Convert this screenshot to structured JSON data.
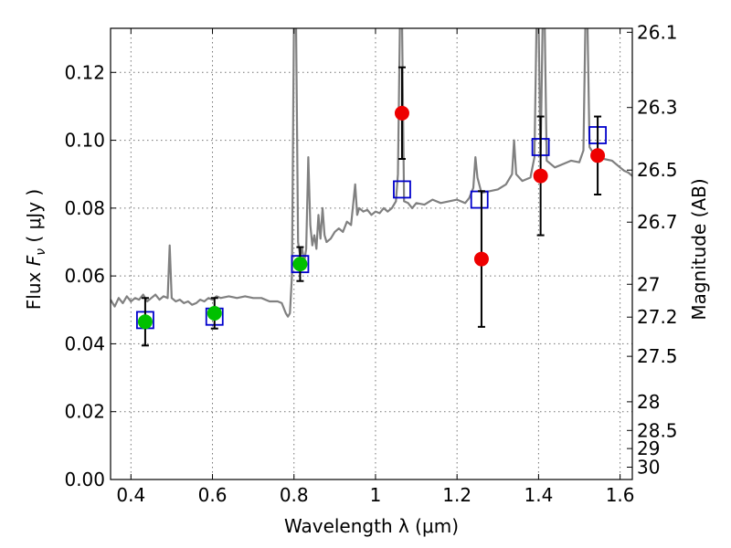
{
  "chart_data": {
    "type": "scatter",
    "xlabel": "Wavelength  λ (μm)",
    "ylabel": "Flux  F_ν  ( μJy )",
    "ylabel_parts": {
      "pre": "Flux  ",
      "sym": "F",
      "sub": "ν",
      "post": "  ( μJy )"
    },
    "ylabel_right": "Magnitude (AB)",
    "xlim": [
      0.35,
      1.63
    ],
    "ylim": [
      0.0,
      0.133
    ],
    "grid": true,
    "x_ticks": [
      0.4,
      0.6,
      0.8,
      1.0,
      1.2,
      1.4,
      1.6
    ],
    "x_tick_labels": [
      "0.4",
      "0.6",
      "0.8",
      "1",
      "1.2",
      "1.4",
      "1.6"
    ],
    "y_ticks": [
      0.0,
      0.02,
      0.04,
      0.06,
      0.08,
      0.1,
      0.12
    ],
    "y_tick_labels": [
      "0.00",
      "0.02",
      "0.04",
      "0.06",
      "0.08",
      "0.10",
      "0.12"
    ],
    "mag_ticks": [
      26.1,
      26.3,
      26.5,
      26.7,
      27,
      27.2,
      27.5,
      28,
      28.5,
      29,
      30
    ],
    "mag_tick_labels": [
      "26.1",
      "26.3",
      "26.5",
      "26.7",
      "27",
      "27.2",
      "27.5",
      "28",
      "28.5",
      "29",
      "30"
    ],
    "series": [
      {
        "kind": "spectrum",
        "color": "#808080",
        "points": [
          [
            0.35,
            0.053
          ],
          [
            0.36,
            0.051
          ],
          [
            0.37,
            0.0535
          ],
          [
            0.38,
            0.052
          ],
          [
            0.39,
            0.054
          ],
          [
            0.4,
            0.0525
          ],
          [
            0.41,
            0.0535
          ],
          [
            0.42,
            0.053
          ],
          [
            0.43,
            0.0545
          ],
          [
            0.44,
            0.0525
          ],
          [
            0.45,
            0.0535
          ],
          [
            0.46,
            0.0545
          ],
          [
            0.47,
            0.053
          ],
          [
            0.48,
            0.054
          ],
          [
            0.49,
            0.0535
          ],
          [
            0.495,
            0.069
          ],
          [
            0.5,
            0.0535
          ],
          [
            0.51,
            0.0525
          ],
          [
            0.52,
            0.053
          ],
          [
            0.53,
            0.052
          ],
          [
            0.54,
            0.0525
          ],
          [
            0.55,
            0.0515
          ],
          [
            0.56,
            0.052
          ],
          [
            0.57,
            0.053
          ],
          [
            0.58,
            0.0525
          ],
          [
            0.59,
            0.0535
          ],
          [
            0.6,
            0.053
          ],
          [
            0.61,
            0.054
          ],
          [
            0.62,
            0.0535
          ],
          [
            0.64,
            0.054
          ],
          [
            0.66,
            0.0535
          ],
          [
            0.68,
            0.054
          ],
          [
            0.7,
            0.0535
          ],
          [
            0.72,
            0.0535
          ],
          [
            0.74,
            0.0525
          ],
          [
            0.76,
            0.0525
          ],
          [
            0.77,
            0.052
          ],
          [
            0.78,
            0.049
          ],
          [
            0.785,
            0.048
          ],
          [
            0.79,
            0.049
          ],
          [
            0.795,
            0.06
          ],
          [
            0.8,
            0.135
          ],
          [
            0.805,
            0.135
          ],
          [
            0.81,
            0.07
          ],
          [
            0.815,
            0.066
          ],
          [
            0.82,
            0.068
          ],
          [
            0.825,
            0.064
          ],
          [
            0.83,
            0.068
          ],
          [
            0.835,
            0.095
          ],
          [
            0.84,
            0.075
          ],
          [
            0.845,
            0.069
          ],
          [
            0.85,
            0.072
          ],
          [
            0.855,
            0.068
          ],
          [
            0.86,
            0.078
          ],
          [
            0.865,
            0.071
          ],
          [
            0.87,
            0.08
          ],
          [
            0.875,
            0.072
          ],
          [
            0.88,
            0.07
          ],
          [
            0.89,
            0.071
          ],
          [
            0.9,
            0.073
          ],
          [
            0.91,
            0.074
          ],
          [
            0.92,
            0.073
          ],
          [
            0.93,
            0.076
          ],
          [
            0.94,
            0.075
          ],
          [
            0.95,
            0.087
          ],
          [
            0.955,
            0.078
          ],
          [
            0.96,
            0.08
          ],
          [
            0.97,
            0.079
          ],
          [
            0.98,
            0.0795
          ],
          [
            0.99,
            0.078
          ],
          [
            1.0,
            0.079
          ],
          [
            1.01,
            0.0785
          ],
          [
            1.02,
            0.08
          ],
          [
            1.03,
            0.079
          ],
          [
            1.04,
            0.08
          ],
          [
            1.05,
            0.082
          ],
          [
            1.055,
            0.09
          ],
          [
            1.06,
            0.135
          ],
          [
            1.065,
            0.135
          ],
          [
            1.07,
            0.082
          ],
          [
            1.08,
            0.0815
          ],
          [
            1.09,
            0.08
          ],
          [
            1.1,
            0.0815
          ],
          [
            1.12,
            0.081
          ],
          [
            1.14,
            0.0825
          ],
          [
            1.16,
            0.0815
          ],
          [
            1.18,
            0.082
          ],
          [
            1.2,
            0.0825
          ],
          [
            1.22,
            0.0815
          ],
          [
            1.23,
            0.083
          ],
          [
            1.24,
            0.086
          ],
          [
            1.245,
            0.095
          ],
          [
            1.25,
            0.089
          ],
          [
            1.26,
            0.0845
          ],
          [
            1.28,
            0.085
          ],
          [
            1.3,
            0.0855
          ],
          [
            1.32,
            0.087
          ],
          [
            1.335,
            0.09
          ],
          [
            1.34,
            0.1
          ],
          [
            1.345,
            0.09
          ],
          [
            1.36,
            0.088
          ],
          [
            1.38,
            0.089
          ],
          [
            1.39,
            0.095
          ],
          [
            1.395,
            0.135
          ],
          [
            1.4,
            0.135
          ],
          [
            1.405,
            0.095
          ],
          [
            1.41,
            0.135
          ],
          [
            1.415,
            0.135
          ],
          [
            1.42,
            0.094
          ],
          [
            1.44,
            0.092
          ],
          [
            1.46,
            0.093
          ],
          [
            1.48,
            0.094
          ],
          [
            1.5,
            0.0935
          ],
          [
            1.51,
            0.097
          ],
          [
            1.515,
            0.135
          ],
          [
            1.52,
            0.135
          ],
          [
            1.525,
            0.098
          ],
          [
            1.54,
            0.095
          ],
          [
            1.56,
            0.0945
          ],
          [
            1.58,
            0.094
          ],
          [
            1.6,
            0.092
          ],
          [
            1.61,
            0.091
          ],
          [
            1.62,
            0.0905
          ],
          [
            1.63,
            0.0895
          ]
        ]
      },
      {
        "kind": "model",
        "marker": "square",
        "color": "#0000cc",
        "points": [
          [
            0.435,
            0.047
          ],
          [
            0.605,
            0.048
          ],
          [
            0.815,
            0.0635
          ],
          [
            1.065,
            0.0855
          ],
          [
            1.255,
            0.0825
          ],
          [
            1.405,
            0.098
          ],
          [
            1.545,
            0.1015
          ]
        ]
      },
      {
        "kind": "observed",
        "marker": "circle",
        "color": "#00c000",
        "points": [
          {
            "x": 0.435,
            "y": 0.0465,
            "err": 0.007
          },
          {
            "x": 0.605,
            "y": 0.049,
            "err": 0.0045
          },
          {
            "x": 0.815,
            "y": 0.0635,
            "err": 0.005
          }
        ]
      },
      {
        "kind": "observed",
        "marker": "circle",
        "color": "#ee0000",
        "points": [
          {
            "x": 1.065,
            "y": 0.108,
            "err": 0.0135
          },
          {
            "x": 1.26,
            "y": 0.065,
            "err": 0.02
          },
          {
            "x": 1.405,
            "y": 0.0895,
            "err": 0.0175
          },
          {
            "x": 1.545,
            "y": 0.0955,
            "err": 0.0115
          }
        ]
      }
    ]
  }
}
